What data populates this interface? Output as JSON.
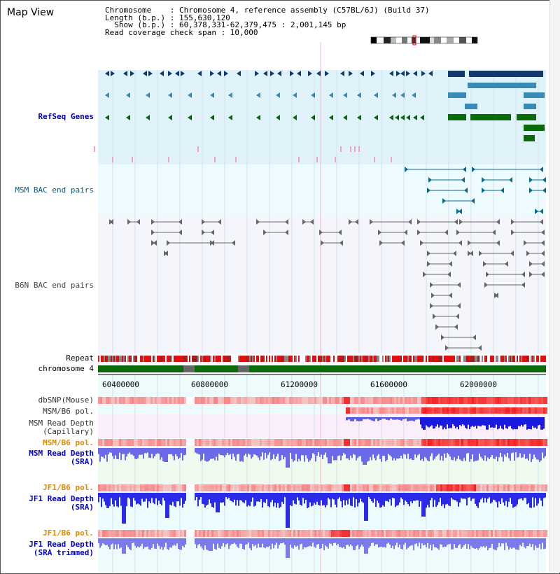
{
  "page": {
    "title": "Map View"
  },
  "info": {
    "chromosome_line": "Chromosome    : Chromosome 4, reference assembly (C57BL/6J) (Build 37)",
    "length_line": "Length (b.p.) : 155,630,120",
    "show_line": "  Show (b.p.) : 60,378,331-62,379,475 : 2,001,145 bp",
    "coverage_line": "Read coverage check span : 10,000"
  },
  "tracks": {
    "refseq": "RefSeq Genes",
    "msm_bac": "MSM BAC end pairs",
    "b6n_bac": "B6N BAC end pairs",
    "repeat": "Repeat",
    "chromosome": "chromosome 4",
    "dbsnp": "dbSNP(Mouse)",
    "msm_b6_pol_1": "MSM/B6 pol.",
    "msm_read_depth_cap": "MSM Read Depth\n(Capillary)",
    "msm_b6_pol_2": "MSM/B6 pol.",
    "msm_read_depth_sra": "MSM Read Depth\n(SRA)",
    "jf1_b6_pol_1": "JF1/B6 pol.",
    "jf1_read_depth_sra": "JF1 Read Depth\n(SRA)",
    "jf1_b6_pol_2": "JF1/B6 pol.",
    "jf1_read_depth_trim": "JF1 Read Depth\n(SRA trimmed)"
  },
  "axis": {
    "ticks": [
      "60400000",
      "60800000",
      "61200000",
      "61600000",
      "62000000"
    ]
  },
  "colors": {
    "refseq_dark": "#123a6e",
    "refseq_mid": "#3a8ab8",
    "refseq_green": "#0a6a0a",
    "pink_mark": "#f4a0c8",
    "msm_bac": "#0a6a8a",
    "b6n_bac": "#666666",
    "label_blue": "#0000cc",
    "label_orange": "#e08a00",
    "label_dark": "#003366"
  }
}
